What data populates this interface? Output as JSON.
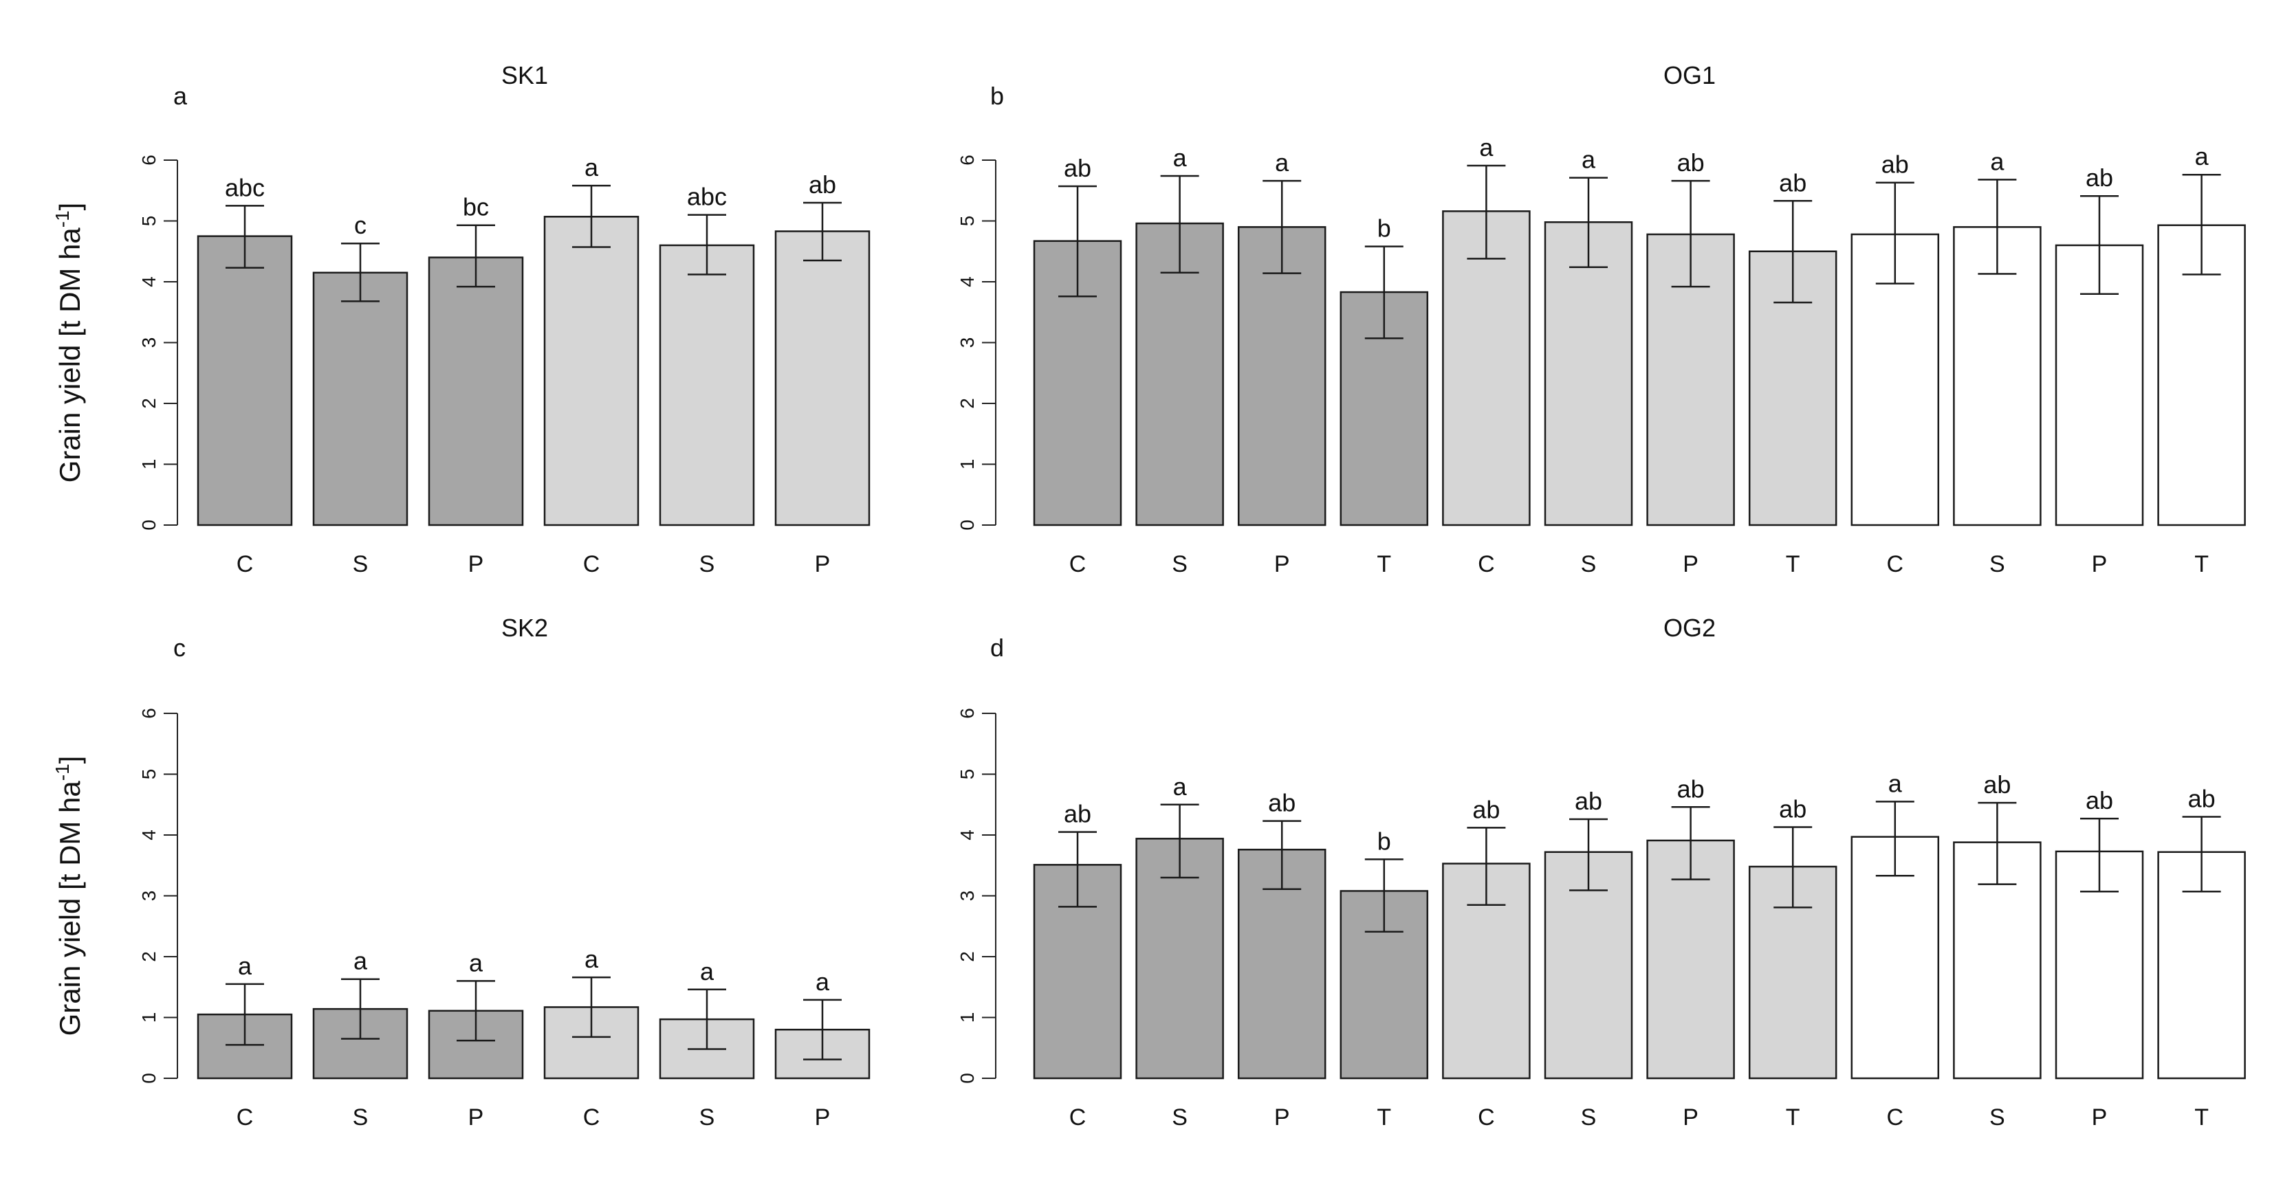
{
  "figure": {
    "ylabel_main": "Grain yield [t DM ha",
    "ylabel_sup": "-1",
    "ylabel_end": "]"
  },
  "colors": {
    "dark": "#a6a6a6",
    "light": "#d6d6d6",
    "white": "#ffffff",
    "axis": "#222222"
  },
  "chart_data": [
    {
      "id": "a",
      "type": "bar",
      "title": "SK1",
      "panel_letter": "a",
      "ylim": [
        0,
        6
      ],
      "yticks": [
        0,
        1,
        2,
        3,
        4,
        5,
        6
      ],
      "show_ylabel": true,
      "categories": [
        "C",
        "S",
        "P",
        "C",
        "S",
        "P"
      ],
      "shades": [
        "dark",
        "dark",
        "dark",
        "light",
        "light",
        "light"
      ],
      "values": [
        4.75,
        4.15,
        4.4,
        5.07,
        4.6,
        4.83
      ],
      "err_low": [
        4.23,
        3.68,
        3.92,
        4.57,
        4.12,
        4.35
      ],
      "err_high": [
        5.25,
        4.63,
        4.93,
        5.58,
        5.1,
        5.3
      ],
      "labels": [
        "abc",
        "c",
        "bc",
        "a",
        "abc",
        "ab"
      ]
    },
    {
      "id": "b",
      "type": "bar",
      "title": "OG1",
      "panel_letter": "b",
      "ylim": [
        0,
        6
      ],
      "yticks": [
        0,
        1,
        2,
        3,
        4,
        5,
        6
      ],
      "show_ylabel": false,
      "categories": [
        "C",
        "S",
        "P",
        "T",
        "C",
        "S",
        "P",
        "T",
        "C",
        "S",
        "P",
        "T"
      ],
      "shades": [
        "dark",
        "dark",
        "dark",
        "dark",
        "light",
        "light",
        "light",
        "light",
        "white",
        "white",
        "white",
        "white"
      ],
      "values": [
        4.67,
        4.96,
        4.9,
        3.83,
        5.16,
        4.98,
        4.78,
        4.5,
        4.78,
        4.9,
        4.6,
        4.93
      ],
      "err_low": [
        3.76,
        4.15,
        4.14,
        3.07,
        4.38,
        4.24,
        3.92,
        3.66,
        3.97,
        4.13,
        3.8,
        4.12
      ],
      "err_high": [
        5.57,
        5.74,
        5.66,
        4.58,
        5.91,
        5.71,
        5.66,
        5.33,
        5.63,
        5.68,
        5.41,
        5.76
      ],
      "labels": [
        "ab",
        "a",
        "a",
        "b",
        "a",
        "a",
        "ab",
        "ab",
        "ab",
        "a",
        "ab",
        "a"
      ]
    },
    {
      "id": "c",
      "type": "bar",
      "title": "SK2",
      "panel_letter": "c",
      "ylim": [
        0,
        6
      ],
      "yticks": [
        0,
        1,
        2,
        3,
        4,
        5,
        6
      ],
      "show_ylabel": true,
      "categories": [
        "C",
        "S",
        "P",
        "C",
        "S",
        "P"
      ],
      "shades": [
        "dark",
        "dark",
        "dark",
        "light",
        "light",
        "light"
      ],
      "values": [
        1.05,
        1.14,
        1.11,
        1.17,
        0.97,
        0.8
      ],
      "err_low": [
        0.55,
        0.65,
        0.62,
        0.68,
        0.48,
        0.31
      ],
      "err_high": [
        1.55,
        1.63,
        1.6,
        1.66,
        1.46,
        1.29
      ],
      "labels": [
        "a",
        "a",
        "a",
        "a",
        "a",
        "a"
      ]
    },
    {
      "id": "d",
      "type": "bar",
      "title": "OG2",
      "panel_letter": "d",
      "ylim": [
        0,
        6
      ],
      "yticks": [
        0,
        1,
        2,
        3,
        4,
        5,
        6
      ],
      "show_ylabel": false,
      "categories": [
        "C",
        "S",
        "P",
        "T",
        "C",
        "S",
        "P",
        "T",
        "C",
        "S",
        "P",
        "T"
      ],
      "shades": [
        "dark",
        "dark",
        "dark",
        "dark",
        "light",
        "light",
        "light",
        "light",
        "white",
        "white",
        "white",
        "white"
      ],
      "values": [
        3.51,
        3.94,
        3.76,
        3.08,
        3.53,
        3.72,
        3.91,
        3.48,
        3.97,
        3.88,
        3.73,
        3.72
      ],
      "err_low": [
        2.82,
        3.3,
        3.11,
        2.41,
        2.85,
        3.09,
        3.27,
        2.81,
        3.33,
        3.19,
        3.07,
        3.07
      ],
      "err_high": [
        4.05,
        4.5,
        4.23,
        3.6,
        4.12,
        4.26,
        4.46,
        4.13,
        4.55,
        4.53,
        4.27,
        4.3
      ],
      "labels": [
        "ab",
        "a",
        "ab",
        "b",
        "ab",
        "ab",
        "ab",
        "ab",
        "a",
        "ab",
        "ab",
        "ab"
      ]
    }
  ]
}
